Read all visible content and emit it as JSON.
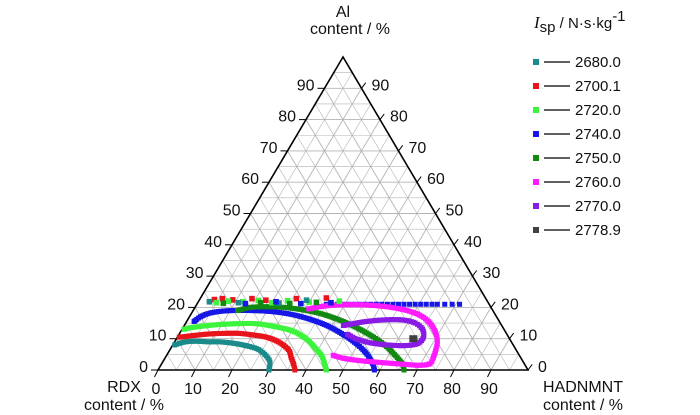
{
  "chart_data": {
    "type": "scatter",
    "subtype": "ternary",
    "axes": {
      "top": {
        "label_line1": "Al",
        "label_line2": "content / %"
      },
      "left": {
        "label_line1": "RDX",
        "label_line2": "content / %"
      },
      "right": {
        "label_line1": "HADNMNT",
        "label_line2": "content / %"
      }
    },
    "ticks_left": [
      "0",
      "10",
      "20",
      "30",
      "40",
      "50",
      "60",
      "70",
      "80",
      "90"
    ],
    "ticks_right": [
      "90",
      "80",
      "70",
      "60",
      "50",
      "40",
      "30",
      "20",
      "10",
      "0"
    ],
    "ticks_bottom": [
      "0",
      "10",
      "20",
      "30",
      "40",
      "50",
      "60",
      "70",
      "80",
      "90"
    ],
    "legend": {
      "title_symbol": "I",
      "title_sub": "sp",
      "title_unit": " / N·s·kg",
      "title_sup": "-1",
      "placement": "right",
      "entries": [
        {
          "label": "2680.0",
          "color": "#1a8a8a"
        },
        {
          "label": "2700.1",
          "color": "#e8141b"
        },
        {
          "label": "2720.0",
          "color": "#3cf43c"
        },
        {
          "label": "2740.0",
          "color": "#1616e6"
        },
        {
          "label": "2750.0",
          "color": "#128a12"
        },
        {
          "label": "2760.0",
          "color": "#ff1aff"
        },
        {
          "label": "2770.0",
          "color": "#8a1ae6"
        },
        {
          "label": "2778.9",
          "color": "#404040"
        }
      ]
    },
    "series": [
      {
        "name": "2680.0",
        "color": "#1a8a8a",
        "shape": "arc",
        "points": [
          [
            0.5,
            8
          ],
          [
            1.5,
            8.5
          ],
          [
            3,
            9
          ],
          [
            6,
            9.2
          ],
          [
            9,
            9
          ],
          [
            12,
            9
          ],
          [
            15,
            8.7
          ],
          [
            18,
            8.2
          ],
          [
            21,
            7.5
          ],
          [
            24,
            6.5
          ],
          [
            27,
            4.5
          ],
          [
            29,
            2.5
          ],
          [
            30,
            0
          ]
        ]
      },
      {
        "name": "2700.1",
        "color": "#e8141b",
        "shape": "arc",
        "points": [
          [
            0.5,
            10.5
          ],
          [
            2,
            10.7
          ],
          [
            4,
            11
          ],
          [
            8,
            11.5
          ],
          [
            12,
            11.7
          ],
          [
            16,
            11.7
          ],
          [
            20,
            11.2
          ],
          [
            24,
            10.5
          ],
          [
            28,
            9
          ],
          [
            32,
            6.5
          ],
          [
            34,
            4
          ],
          [
            36,
            1.5
          ],
          [
            37,
            0
          ]
        ]
      },
      {
        "name": "2720.0",
        "color": "#3cf43c",
        "shape": "arc",
        "points": [
          [
            0.5,
            13
          ],
          [
            2,
            13.5
          ],
          [
            5,
            14
          ],
          [
            9,
            14.5
          ],
          [
            14,
            14.8
          ],
          [
            19,
            14.8
          ],
          [
            24,
            14
          ],
          [
            30,
            12.5
          ],
          [
            35,
            10
          ],
          [
            39,
            7
          ],
          [
            42,
            4.5
          ],
          [
            44,
            2
          ],
          [
            45.5,
            0
          ]
        ]
      },
      {
        "name": "2740.0",
        "color": "#1616e6",
        "shape": "arc",
        "points": [
          [
            2,
            15.5
          ],
          [
            3,
            17
          ],
          [
            5,
            18.2
          ],
          [
            9,
            18.9
          ],
          [
            15,
            19
          ],
          [
            21,
            18.7
          ],
          [
            27,
            17.8
          ],
          [
            33,
            16.2
          ],
          [
            39,
            14
          ],
          [
            45,
            11
          ],
          [
            50,
            8
          ],
          [
            54,
            5
          ],
          [
            57,
            2
          ],
          [
            58.5,
            0
          ]
        ]
      },
      {
        "name": "2740.0",
        "color": "#1616e6",
        "shape": "topline",
        "points": [
          [
            35,
            21
          ],
          [
            38,
            21
          ],
          [
            41,
            21
          ],
          [
            44,
            21
          ],
          [
            47,
            21
          ],
          [
            50,
            21
          ],
          [
            53,
            21
          ],
          [
            56,
            21
          ],
          [
            59,
            21
          ],
          [
            62,
            21
          ],
          [
            65,
            21
          ],
          [
            67,
            21
          ],
          [
            69,
            21
          ],
          [
            71,
            21
          ]
        ]
      },
      {
        "name": "2750.0",
        "color": "#128a12",
        "shape": "arc",
        "points": [
          [
            12,
            19
          ],
          [
            15,
            20
          ],
          [
            19,
            20.2
          ],
          [
            24,
            20
          ],
          [
            29,
            19.3
          ],
          [
            35,
            18
          ],
          [
            41,
            16
          ],
          [
            47,
            13.5
          ],
          [
            53,
            10.5
          ],
          [
            58,
            7.5
          ],
          [
            62,
            4.5
          ],
          [
            65,
            2
          ],
          [
            66.5,
            0
          ]
        ]
      },
      {
        "name": "2760.0",
        "color": "#ff1aff",
        "shape": "arc",
        "points": [
          [
            31,
            19.5
          ],
          [
            34,
            20.3
          ],
          [
            39,
            20.8
          ],
          [
            45,
            20.8
          ],
          [
            51,
            20.3
          ],
          [
            57,
            19.2
          ],
          [
            62,
            17.5
          ],
          [
            66,
            15
          ],
          [
            69,
            12
          ],
          [
            71,
            9
          ],
          [
            72,
            6
          ],
          [
            72.5,
            3.5
          ],
          [
            72.5,
            2
          ],
          [
            70,
            1.5
          ],
          [
            66,
            1.8
          ],
          [
            60,
            2.3
          ],
          [
            53,
            3
          ],
          [
            48,
            3.8
          ],
          [
            45,
            4.7
          ]
        ]
      },
      {
        "name": "2770.0",
        "color": "#8a1ae6",
        "shape": "arc",
        "points": [
          [
            43,
            14.2
          ],
          [
            48,
            15.4
          ],
          [
            53,
            16
          ],
          [
            58,
            16
          ],
          [
            62,
            15
          ],
          [
            65,
            13
          ],
          [
            66.5,
            10.5
          ],
          [
            66,
            8.5
          ],
          [
            63,
            7.8
          ],
          [
            58,
            8
          ],
          [
            53,
            8.7
          ],
          [
            49,
            9.8
          ],
          [
            45.5,
            11.4
          ]
        ]
      },
      {
        "name": "2778.9",
        "color": "#404040",
        "shape": "point",
        "points": [
          [
            64,
            10
          ]
        ]
      }
    ],
    "scatter_top": [
      {
        "color": "#e8141b",
        "points": [
          [
            4,
            22.5
          ],
          [
            6,
            22.8
          ],
          [
            9,
            22.4
          ],
          [
            14,
            22.8
          ],
          [
            18,
            22.3
          ],
          [
            26,
            22.8
          ],
          [
            34,
            23
          ]
        ]
      },
      {
        "color": "#3cf43c",
        "points": [
          [
            5,
            21.5
          ],
          [
            8,
            22
          ],
          [
            12,
            21.8
          ],
          [
            16,
            22.2
          ],
          [
            20,
            21.5
          ],
          [
            24,
            22.1
          ],
          [
            30,
            21.7
          ],
          [
            38,
            22
          ]
        ]
      },
      {
        "color": "#1a8a8a",
        "points": [
          [
            3,
            21.8
          ],
          [
            11,
            21.5
          ],
          [
            22,
            21.4
          ],
          [
            29,
            22.3
          ]
        ]
      },
      {
        "color": "#128a12",
        "points": [
          [
            7,
            21.3
          ],
          [
            17,
            21.5
          ],
          [
            25,
            21.2
          ],
          [
            32,
            21.6
          ]
        ]
      },
      {
        "color": "#1616e6",
        "points": [
          [
            13,
            21.2
          ],
          [
            21,
            21.8
          ],
          [
            28,
            21.2
          ],
          [
            36,
            21.5
          ]
        ]
      }
    ]
  }
}
